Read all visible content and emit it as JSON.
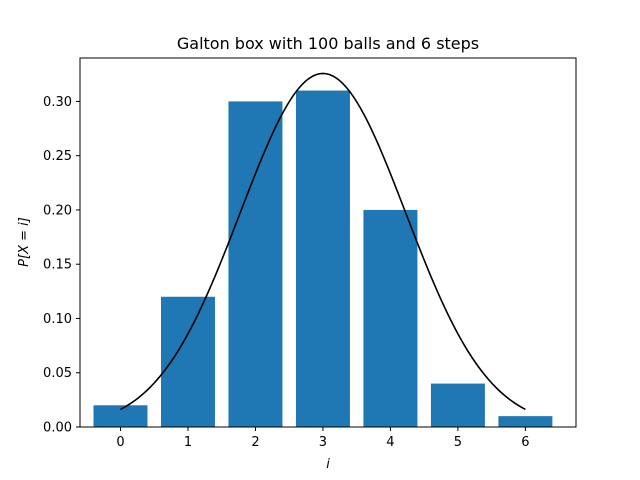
{
  "chart_data": {
    "type": "bar",
    "title": "Galton box with 100 balls and 6 steps",
    "xlabel": "i",
    "ylabel": "P[X = i]",
    "categories": [
      "0",
      "1",
      "2",
      "3",
      "4",
      "5",
      "6"
    ],
    "x": [
      0,
      1,
      2,
      3,
      4,
      5,
      6
    ],
    "values": [
      0.02,
      0.12,
      0.3,
      0.31,
      0.2,
      0.04,
      0.01
    ],
    "xlim": [
      -0.6,
      6.75
    ],
    "ylim": [
      0,
      0.34
    ],
    "yticks": [
      "0.00",
      "0.05",
      "0.10",
      "0.15",
      "0.20",
      "0.25",
      "0.30"
    ],
    "bar_color": "#1f77b4",
    "curve_color": "#000000",
    "curve": {
      "type": "line",
      "description_source": "normal approximation overlay",
      "mean": 3,
      "std": 1.2247,
      "x_range": [
        0,
        6
      ]
    },
    "grid": false,
    "legend": "none"
  }
}
